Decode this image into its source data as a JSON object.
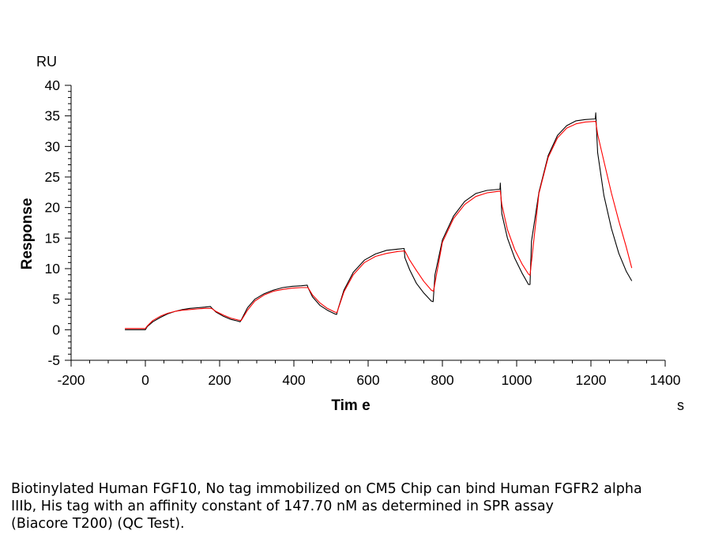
{
  "chart_data": {
    "type": "line",
    "xlabel": "Tim e",
    "ylabel": "Response",
    "x_unit": "s",
    "y_unit": "RU",
    "xlim": [
      -200,
      1400
    ],
    "ylim": [
      -5,
      40
    ],
    "x_ticks": [
      "-200",
      "0",
      "200",
      "400",
      "600",
      "800",
      "1000",
      "1200",
      "1400"
    ],
    "y_ticks": [
      "-5",
      "0",
      "5",
      "10",
      "15",
      "20",
      "25",
      "30",
      "35",
      "40"
    ],
    "grid": false,
    "series": [
      {
        "color": "#000000",
        "x": [
          -55,
          0,
          5,
          20,
          40,
          60,
          80,
          100,
          120,
          140,
          160,
          175,
          178,
          190,
          210,
          230,
          250,
          255,
          260,
          275,
          295,
          320,
          345,
          370,
          395,
          420,
          436,
          438,
          450,
          470,
          490,
          510,
          515,
          520,
          535,
          560,
          590,
          620,
          650,
          680,
          697,
          699,
          712,
          730,
          750,
          770,
          775,
          780,
          800,
          830,
          860,
          890,
          920,
          955,
          956,
          960,
          975,
          995,
          1015,
          1032,
          1036,
          1040,
          1060,
          1085,
          1110,
          1135,
          1160,
          1185,
          1212,
          1213,
          1218,
          1235,
          1255,
          1275,
          1295,
          1310
        ],
        "y": [
          0,
          0,
          0.5,
          1.3,
          2.0,
          2.6,
          3.0,
          3.3,
          3.5,
          3.6,
          3.7,
          3.8,
          3.6,
          2.9,
          2.2,
          1.7,
          1.4,
          1.3,
          1.8,
          3.6,
          5.0,
          5.9,
          6.5,
          6.9,
          7.1,
          7.2,
          7.3,
          6.9,
          5.4,
          4.0,
          3.2,
          2.6,
          2.5,
          3.6,
          6.5,
          9.4,
          11.4,
          12.4,
          13.0,
          13.2,
          13.3,
          11.8,
          9.8,
          7.6,
          6.0,
          4.7,
          4.6,
          9.0,
          14.7,
          18.6,
          21.0,
          22.3,
          22.8,
          23.0,
          24.0,
          19.0,
          15.0,
          11.7,
          9.2,
          7.4,
          7.4,
          14.5,
          22.5,
          28.5,
          31.8,
          33.4,
          34.2,
          34.4,
          34.5,
          35.5,
          29.0,
          22.0,
          16.6,
          12.5,
          9.6,
          8.0
        ]
      },
      {
        "color": "#ff0000",
        "x": [
          -55,
          0,
          5,
          20,
          40,
          60,
          80,
          100,
          120,
          140,
          160,
          178,
          190,
          210,
          230,
          250,
          258,
          275,
          295,
          320,
          345,
          370,
          395,
          420,
          438,
          450,
          470,
          490,
          510,
          516,
          535,
          560,
          590,
          620,
          650,
          680,
          699,
          712,
          730,
          750,
          770,
          776,
          800,
          830,
          860,
          890,
          920,
          956,
          960,
          975,
          995,
          1015,
          1032,
          1036,
          1060,
          1085,
          1110,
          1135,
          1160,
          1185,
          1213,
          1218,
          1235,
          1255,
          1275,
          1295,
          1310
        ],
        "y": [
          0.2,
          0.2,
          0.6,
          1.5,
          2.2,
          2.7,
          3.0,
          3.2,
          3.3,
          3.4,
          3.5,
          3.5,
          3.0,
          2.4,
          1.9,
          1.6,
          1.5,
          3.2,
          4.7,
          5.7,
          6.3,
          6.6,
          6.8,
          6.9,
          6.9,
          5.7,
          4.4,
          3.5,
          2.9,
          2.8,
          6.2,
          9.0,
          11.0,
          12.0,
          12.5,
          12.8,
          12.9,
          11.4,
          9.7,
          7.9,
          6.5,
          6.3,
          14.3,
          18.2,
          20.5,
          21.8,
          22.4,
          22.7,
          20.5,
          16.4,
          13.1,
          10.7,
          9.1,
          8.9,
          22.3,
          28.2,
          31.4,
          33.0,
          33.7,
          34.0,
          34.1,
          32.0,
          27.6,
          22.4,
          17.8,
          13.6,
          10.1
        ]
      }
    ]
  },
  "caption": {
    "line1": "Biotinylated Human FGF10, No tag immobilized on CM5 Chip can bind Human FGFR2 alpha",
    "line2": "IIIb, His tag with an affinity constant of 147.70 nM as determined in SPR assay",
    "line3": "(Biacore T200) (QC Test)."
  }
}
